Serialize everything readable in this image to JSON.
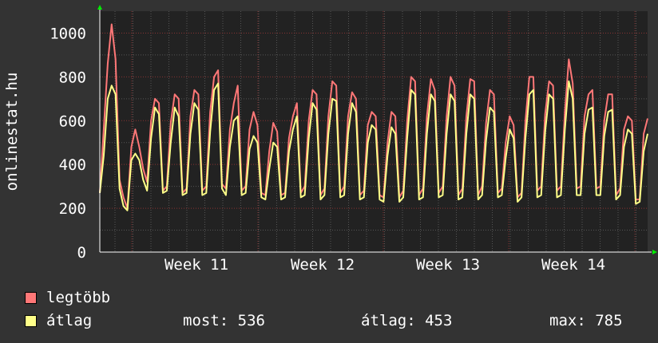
{
  "chart_data": {
    "type": "line",
    "vertical_label": "onlinestat.hu",
    "ylim": [
      0,
      1100
    ],
    "y_ticks": [
      0,
      200,
      400,
      600,
      800,
      1000
    ],
    "x_tick_labels": [
      "Week 11",
      "Week 12",
      "Week 13",
      "Week 14"
    ],
    "grid": true,
    "colors": {
      "background": "#333333",
      "plot_bg": "#222222",
      "major_grid": "#883333",
      "minor_grid": "#555555",
      "legtobb": "#ff7777",
      "atlag": "#ffff88",
      "arrow": "#00ee00"
    },
    "series": [
      {
        "name": "legtöbb",
        "values": [
          270,
          560,
          860,
          1040,
          880,
          330,
          250,
          200,
          480,
          560,
          480,
          380,
          320,
          600,
          700,
          680,
          280,
          300,
          590,
          720,
          700,
          270,
          290,
          620,
          740,
          720,
          280,
          300,
          640,
          800,
          830,
          310,
          290,
          560,
          680,
          760,
          280,
          300,
          560,
          640,
          580,
          270,
          260,
          460,
          590,
          550,
          260,
          270,
          520,
          620,
          680,
          270,
          300,
          600,
          740,
          720,
          260,
          290,
          620,
          780,
          760,
          270,
          300,
          620,
          730,
          700,
          260,
          280,
          580,
          640,
          620,
          260,
          250,
          500,
          640,
          620,
          250,
          280,
          600,
          800,
          780,
          260,
          290,
          620,
          790,
          740,
          270,
          300,
          620,
          800,
          760,
          260,
          290,
          620,
          790,
          780,
          260,
          300,
          590,
          740,
          720,
          270,
          290,
          500,
          620,
          580,
          250,
          270,
          600,
          800,
          800,
          280,
          300,
          630,
          780,
          760,
          280,
          300,
          640,
          880,
          770,
          290,
          300,
          620,
          720,
          740,
          290,
          300,
          600,
          720,
          720,
          260,
          290,
          560,
          620,
          600,
          240,
          240,
          540,
          610
        ]
      },
      {
        "name": "átlag",
        "values": [
          270,
          440,
          700,
          760,
          720,
          290,
          210,
          190,
          420,
          450,
          420,
          330,
          280,
          520,
          660,
          630,
          270,
          280,
          500,
          660,
          620,
          260,
          270,
          540,
          680,
          650,
          260,
          270,
          550,
          740,
          770,
          290,
          260,
          480,
          600,
          620,
          260,
          270,
          470,
          530,
          500,
          250,
          240,
          380,
          500,
          480,
          240,
          250,
          460,
          560,
          620,
          250,
          260,
          520,
          680,
          650,
          240,
          260,
          540,
          700,
          690,
          250,
          260,
          540,
          680,
          640,
          240,
          250,
          500,
          580,
          560,
          240,
          230,
          440,
          570,
          540,
          230,
          250,
          520,
          740,
          720,
          240,
          250,
          540,
          720,
          690,
          250,
          260,
          540,
          720,
          690,
          240,
          250,
          540,
          720,
          700,
          240,
          260,
          510,
          660,
          640,
          250,
          260,
          430,
          560,
          520,
          230,
          250,
          520,
          720,
          740,
          250,
          260,
          550,
          720,
          700,
          250,
          260,
          560,
          780,
          700,
          260,
          260,
          540,
          650,
          660,
          260,
          260,
          530,
          640,
          650,
          240,
          260,
          480,
          560,
          540,
          220,
          230,
          460,
          540
        ]
      }
    ]
  },
  "legend": {
    "items": [
      {
        "label": "legtöbb",
        "color": "#ff7777"
      },
      {
        "label": "átlag",
        "color": "#ffff88"
      }
    ]
  },
  "stats": {
    "most": "most: 536",
    "atlag": "átlag: 453",
    "max": "max: 785"
  }
}
